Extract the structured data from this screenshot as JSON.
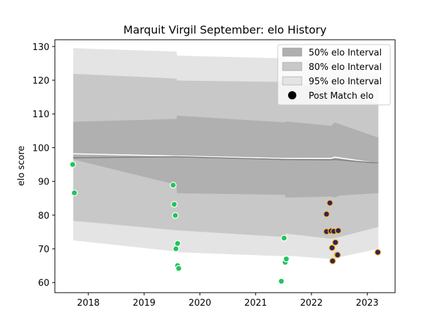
{
  "chart_data": {
    "type": "scatter",
    "title": "Marquit Virgil September: elo History",
    "xlabel": "",
    "ylabel": "elo score",
    "xlim": [
      2017.4,
      2023.5
    ],
    "ylim": [
      57,
      132
    ],
    "xticks": [
      2018,
      2019,
      2020,
      2021,
      2022,
      2023
    ],
    "yticks": [
      60,
      70,
      80,
      90,
      100,
      110,
      120,
      130
    ],
    "legend": {
      "position": "top-right",
      "entries": [
        {
          "label": "50% elo Interval",
          "color": "#b0b0b0"
        },
        {
          "label": "80% elo Interval",
          "color": "#c8c8c8"
        },
        {
          "label": "95% elo Interval",
          "color": "#e4e4e4"
        },
        {
          "label": "Post Match elo",
          "color": "#000000"
        }
      ]
    },
    "bands": {
      "x": [
        2017.73,
        2019.58,
        2019.59,
        2021.52,
        2021.54,
        2022.35,
        2022.42,
        2022.5,
        2023.2
      ],
      "ci95": {
        "upper": [
          129.5,
          128.5,
          127.3,
          126.5,
          126.0,
          126.0,
          125.8,
          125.0,
          122.0
        ],
        "lower": [
          72.5,
          69.2,
          69.0,
          67.8,
          68.0,
          67.0,
          66.9,
          67.5,
          70.0
        ]
      },
      "ci80": {
        "upper": [
          121.9,
          120.5,
          119.9,
          119.5,
          119.0,
          118.2,
          117.5,
          117.0,
          113.0
        ],
        "lower": [
          78.3,
          75.5,
          75.5,
          73.5,
          74.5,
          73.0,
          73.2,
          73.5,
          76.5
        ]
      },
      "ci50": {
        "upper": [
          107.7,
          108.5,
          109.5,
          107.5,
          107.8,
          106.5,
          107.5,
          107.0,
          103.0
        ],
        "lower": [
          96.5,
          89.0,
          86.5,
          86.0,
          85.2,
          85.5,
          85.2,
          85.8,
          86.5
        ]
      }
    },
    "series": [
      {
        "line": "mean",
        "color": "#ffffff",
        "x": [
          2017.73,
          2019.58,
          2021.52,
          2022.35,
          2022.42,
          2023.2
        ],
        "y": [
          98.2,
          97.5,
          96.8,
          96.8,
          97.2,
          95.3
        ]
      },
      {
        "line": "median",
        "color": "#808080",
        "x": [
          2017.73,
          2019.58,
          2021.52,
          2022.35,
          2022.42,
          2023.2
        ],
        "y": [
          97.0,
          97.3,
          96.5,
          96.4,
          96.5,
          95.4
        ]
      },
      {
        "points": "early",
        "marker_color": "#1fc55c",
        "edge_color": "#ffffff",
        "x": [
          2017.72,
          2017.75,
          2019.52,
          2019.54,
          2019.56,
          2019.57,
          2019.6,
          2019.6,
          2019.62,
          2021.46,
          2021.51,
          2021.53,
          2021.55
        ],
        "y": [
          95.0,
          86.6,
          88.9,
          83.2,
          79.9,
          70.0,
          71.6,
          65.0,
          64.2,
          60.4,
          73.2,
          66.0,
          67.0
        ]
      },
      {
        "points": "recent",
        "marker_color": "#3b1f5a",
        "edge_color": "#f2c326",
        "x": [
          2022.27,
          2022.27,
          2022.33,
          2022.35,
          2022.37,
          2022.38,
          2022.4,
          2022.43,
          2022.46,
          2022.47,
          2022.48,
          2023.19
        ],
        "y": [
          80.3,
          75.1,
          83.6,
          75.3,
          70.3,
          66.4,
          75.2,
          71.9,
          68.3,
          68.2,
          75.4,
          69.0
        ]
      }
    ]
  }
}
